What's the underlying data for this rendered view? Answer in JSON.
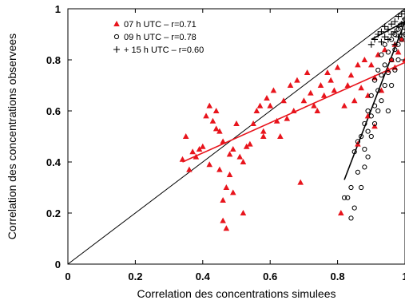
{
  "chart_data": {
    "type": "scatter",
    "xlabel": "Correlation des concentrations simulees",
    "ylabel": "Correlation des concentrations observees",
    "xlim": [
      0,
      1
    ],
    "ylim": [
      0,
      1
    ],
    "x_ticks": [
      "0",
      "0.2",
      "0.4",
      "0.6",
      "0.8",
      "1"
    ],
    "y_ticks": [
      "0",
      "0.2",
      "0.4",
      "0.6",
      "0.8",
      "1"
    ],
    "grid": false,
    "legend_position": "top-left",
    "reference_line": {
      "from": [
        0,
        0
      ],
      "to": [
        1,
        1
      ],
      "color": "#000000"
    },
    "series": [
      {
        "name": "07 h UTC – r=0.71",
        "marker": "triangle",
        "color": "#e8141c",
        "fit": {
          "x": [
            0.34,
            1.0
          ],
          "y": [
            0.4,
            0.79
          ]
        },
        "points": [
          [
            0.34,
            0.41
          ],
          [
            0.35,
            0.5
          ],
          [
            0.36,
            0.37
          ],
          [
            0.37,
            0.44
          ],
          [
            0.38,
            0.42
          ],
          [
            0.39,
            0.45
          ],
          [
            0.4,
            0.46
          ],
          [
            0.41,
            0.58
          ],
          [
            0.42,
            0.62
          ],
          [
            0.42,
            0.39
          ],
          [
            0.43,
            0.56
          ],
          [
            0.44,
            0.6
          ],
          [
            0.44,
            0.53
          ],
          [
            0.45,
            0.52
          ],
          [
            0.45,
            0.37
          ],
          [
            0.46,
            0.48
          ],
          [
            0.46,
            0.25
          ],
          [
            0.46,
            0.17
          ],
          [
            0.47,
            0.14
          ],
          [
            0.47,
            0.3
          ],
          [
            0.48,
            0.43
          ],
          [
            0.48,
            0.35
          ],
          [
            0.49,
            0.45
          ],
          [
            0.49,
            0.28
          ],
          [
            0.5,
            0.55
          ],
          [
            0.51,
            0.42
          ],
          [
            0.52,
            0.4
          ],
          [
            0.52,
            0.2
          ],
          [
            0.53,
            0.46
          ],
          [
            0.54,
            0.47
          ],
          [
            0.55,
            0.55
          ],
          [
            0.56,
            0.6
          ],
          [
            0.57,
            0.62
          ],
          [
            0.58,
            0.52
          ],
          [
            0.58,
            0.5
          ],
          [
            0.59,
            0.65
          ],
          [
            0.6,
            0.62
          ],
          [
            0.61,
            0.68
          ],
          [
            0.62,
            0.56
          ],
          [
            0.63,
            0.5
          ],
          [
            0.64,
            0.64
          ],
          [
            0.65,
            0.57
          ],
          [
            0.66,
            0.7
          ],
          [
            0.67,
            0.6
          ],
          [
            0.68,
            0.72
          ],
          [
            0.69,
            0.32
          ],
          [
            0.7,
            0.64
          ],
          [
            0.71,
            0.75
          ],
          [
            0.72,
            0.67
          ],
          [
            0.73,
            0.62
          ],
          [
            0.74,
            0.6
          ],
          [
            0.75,
            0.7
          ],
          [
            0.76,
            0.66
          ],
          [
            0.77,
            0.75
          ],
          [
            0.78,
            0.72
          ],
          [
            0.79,
            0.68
          ],
          [
            0.8,
            0.77
          ],
          [
            0.81,
            0.2
          ],
          [
            0.82,
            0.62
          ],
          [
            0.83,
            0.7
          ],
          [
            0.84,
            0.74
          ],
          [
            0.85,
            0.64
          ],
          [
            0.86,
            0.78
          ],
          [
            0.86,
            0.47
          ],
          [
            0.87,
            0.69
          ],
          [
            0.88,
            0.8
          ],
          [
            0.89,
            0.66
          ],
          [
            0.89,
            0.58
          ],
          [
            0.9,
            0.78
          ],
          [
            0.91,
            0.73
          ],
          [
            0.91,
            0.54
          ],
          [
            0.92,
            0.82
          ],
          [
            0.93,
            0.68
          ],
          [
            0.94,
            0.84
          ],
          [
            0.95,
            0.76
          ],
          [
            0.96,
            0.8
          ],
          [
            0.97,
            0.86
          ],
          [
            0.97,
            0.77
          ],
          [
            0.98,
            0.83
          ],
          [
            0.99,
            0.88
          ],
          [
            1.0,
            0.8
          ]
        ]
      },
      {
        "name": "09 h UTC – r=0.78",
        "marker": "circle",
        "color": "#000000",
        "fit": {
          "x": [
            0.82,
            1.0
          ],
          "y": [
            0.33,
            0.95
          ]
        },
        "points": [
          [
            0.82,
            0.26
          ],
          [
            0.83,
            0.26
          ],
          [
            0.84,
            0.18
          ],
          [
            0.84,
            0.3
          ],
          [
            0.85,
            0.22
          ],
          [
            0.85,
            0.44
          ],
          [
            0.86,
            0.36
          ],
          [
            0.86,
            0.48
          ],
          [
            0.87,
            0.3
          ],
          [
            0.87,
            0.5
          ],
          [
            0.88,
            0.45
          ],
          [
            0.88,
            0.55
          ],
          [
            0.88,
            0.38
          ],
          [
            0.89,
            0.52
          ],
          [
            0.89,
            0.6
          ],
          [
            0.89,
            0.42
          ],
          [
            0.9,
            0.58
          ],
          [
            0.9,
            0.66
          ],
          [
            0.9,
            0.5
          ],
          [
            0.91,
            0.62
          ],
          [
            0.91,
            0.72
          ],
          [
            0.91,
            0.55
          ],
          [
            0.92,
            0.68
          ],
          [
            0.92,
            0.76
          ],
          [
            0.92,
            0.6
          ],
          [
            0.93,
            0.64
          ],
          [
            0.93,
            0.74
          ],
          [
            0.93,
            0.82
          ],
          [
            0.94,
            0.7
          ],
          [
            0.94,
            0.78
          ],
          [
            0.94,
            0.86
          ],
          [
            0.95,
            0.75
          ],
          [
            0.95,
            0.83
          ],
          [
            0.95,
            0.6
          ],
          [
            0.96,
            0.8
          ],
          [
            0.96,
            0.88
          ],
          [
            0.96,
            0.7
          ],
          [
            0.97,
            0.84
          ],
          [
            0.97,
            0.9
          ],
          [
            0.97,
            0.76
          ],
          [
            0.98,
            0.86
          ],
          [
            0.98,
            0.92
          ],
          [
            0.98,
            0.8
          ],
          [
            0.99,
            0.88
          ],
          [
            0.99,
            0.94
          ],
          [
            1.0,
            0.9
          ],
          [
            1.0,
            0.96
          ]
        ]
      },
      {
        "name": "+ 15 h UTC – r=0.60",
        "marker": "plus",
        "color": "#000000",
        "fit": {
          "x": [
            0.9,
            1.0
          ],
          "y": [
            0.88,
            0.95
          ]
        },
        "points": [
          [
            0.9,
            0.86
          ],
          [
            0.91,
            0.88
          ],
          [
            0.92,
            0.9
          ],
          [
            0.93,
            0.87
          ],
          [
            0.93,
            0.91
          ],
          [
            0.94,
            0.89
          ],
          [
            0.94,
            0.93
          ],
          [
            0.95,
            0.88
          ],
          [
            0.95,
            0.92
          ],
          [
            0.96,
            0.9
          ],
          [
            0.96,
            0.94
          ],
          [
            0.97,
            0.86
          ],
          [
            0.97,
            0.91
          ],
          [
            0.97,
            0.95
          ],
          [
            0.98,
            0.89
          ],
          [
            0.98,
            0.93
          ],
          [
            0.98,
            0.97
          ],
          [
            0.99,
            0.9
          ],
          [
            0.99,
            0.94
          ],
          [
            0.99,
            0.98
          ],
          [
            1.0,
            0.92
          ],
          [
            1.0,
            0.96
          ],
          [
            1.0,
            0.99
          ]
        ]
      }
    ]
  }
}
